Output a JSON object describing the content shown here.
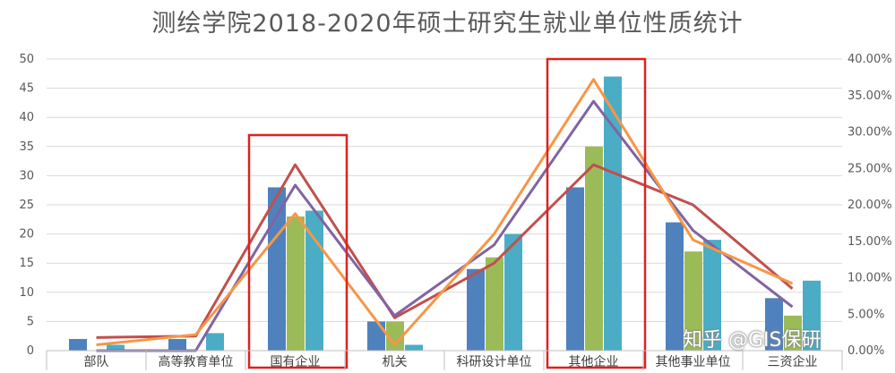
{
  "chart_data": {
    "type": "bar",
    "title": "测绘学院2018-2020年硕士研究生就业单位性质统计",
    "categories": [
      "部队",
      "高等教育单位",
      "国有企业",
      "机关",
      "科研设计单位",
      "其他企业",
      "其他事业单位",
      "三资企业"
    ],
    "ylim_left": [
      0,
      50
    ],
    "yticks_left": [
      "0",
      "5",
      "10",
      "15",
      "20",
      "25",
      "30",
      "35",
      "40",
      "45",
      "50"
    ],
    "ylim_right": [
      0,
      0.4
    ],
    "yticks_right": [
      "0.00%",
      "5.00%",
      "10.00%",
      "15.00%",
      "20.00%",
      "25.00%",
      "30.00%",
      "35.00%",
      "40.00%"
    ],
    "grid": true,
    "bar_series": [
      {
        "color": "#4f81bd",
        "values": [
          2,
          2,
          28,
          5,
          14,
          28,
          22,
          9
        ]
      },
      {
        "color": "#9bbb59",
        "values": [
          0,
          0,
          23,
          5,
          16,
          35,
          17,
          6
        ]
      },
      {
        "color": "#4bacc6",
        "values": [
          1,
          3,
          24,
          1,
          20,
          47,
          19,
          12
        ]
      }
    ],
    "line_series": [
      {
        "color": "#c0504d",
        "values": [
          0.018,
          0.02,
          0.255,
          0.045,
          0.12,
          0.255,
          0.2,
          0.085
        ]
      },
      {
        "color": "#8064a2",
        "values": [
          0.0,
          0.0,
          0.227,
          0.048,
          0.145,
          0.342,
          0.165,
          0.06
        ]
      },
      {
        "color": "#f79646",
        "values": [
          0.008,
          0.022,
          0.188,
          0.008,
          0.16,
          0.372,
          0.152,
          0.092
        ]
      }
    ],
    "highlight_boxes": [
      "国有企业",
      "其他企业"
    ],
    "highlight_color": "#e02020"
  },
  "watermark": "知乎 @GIS保研"
}
